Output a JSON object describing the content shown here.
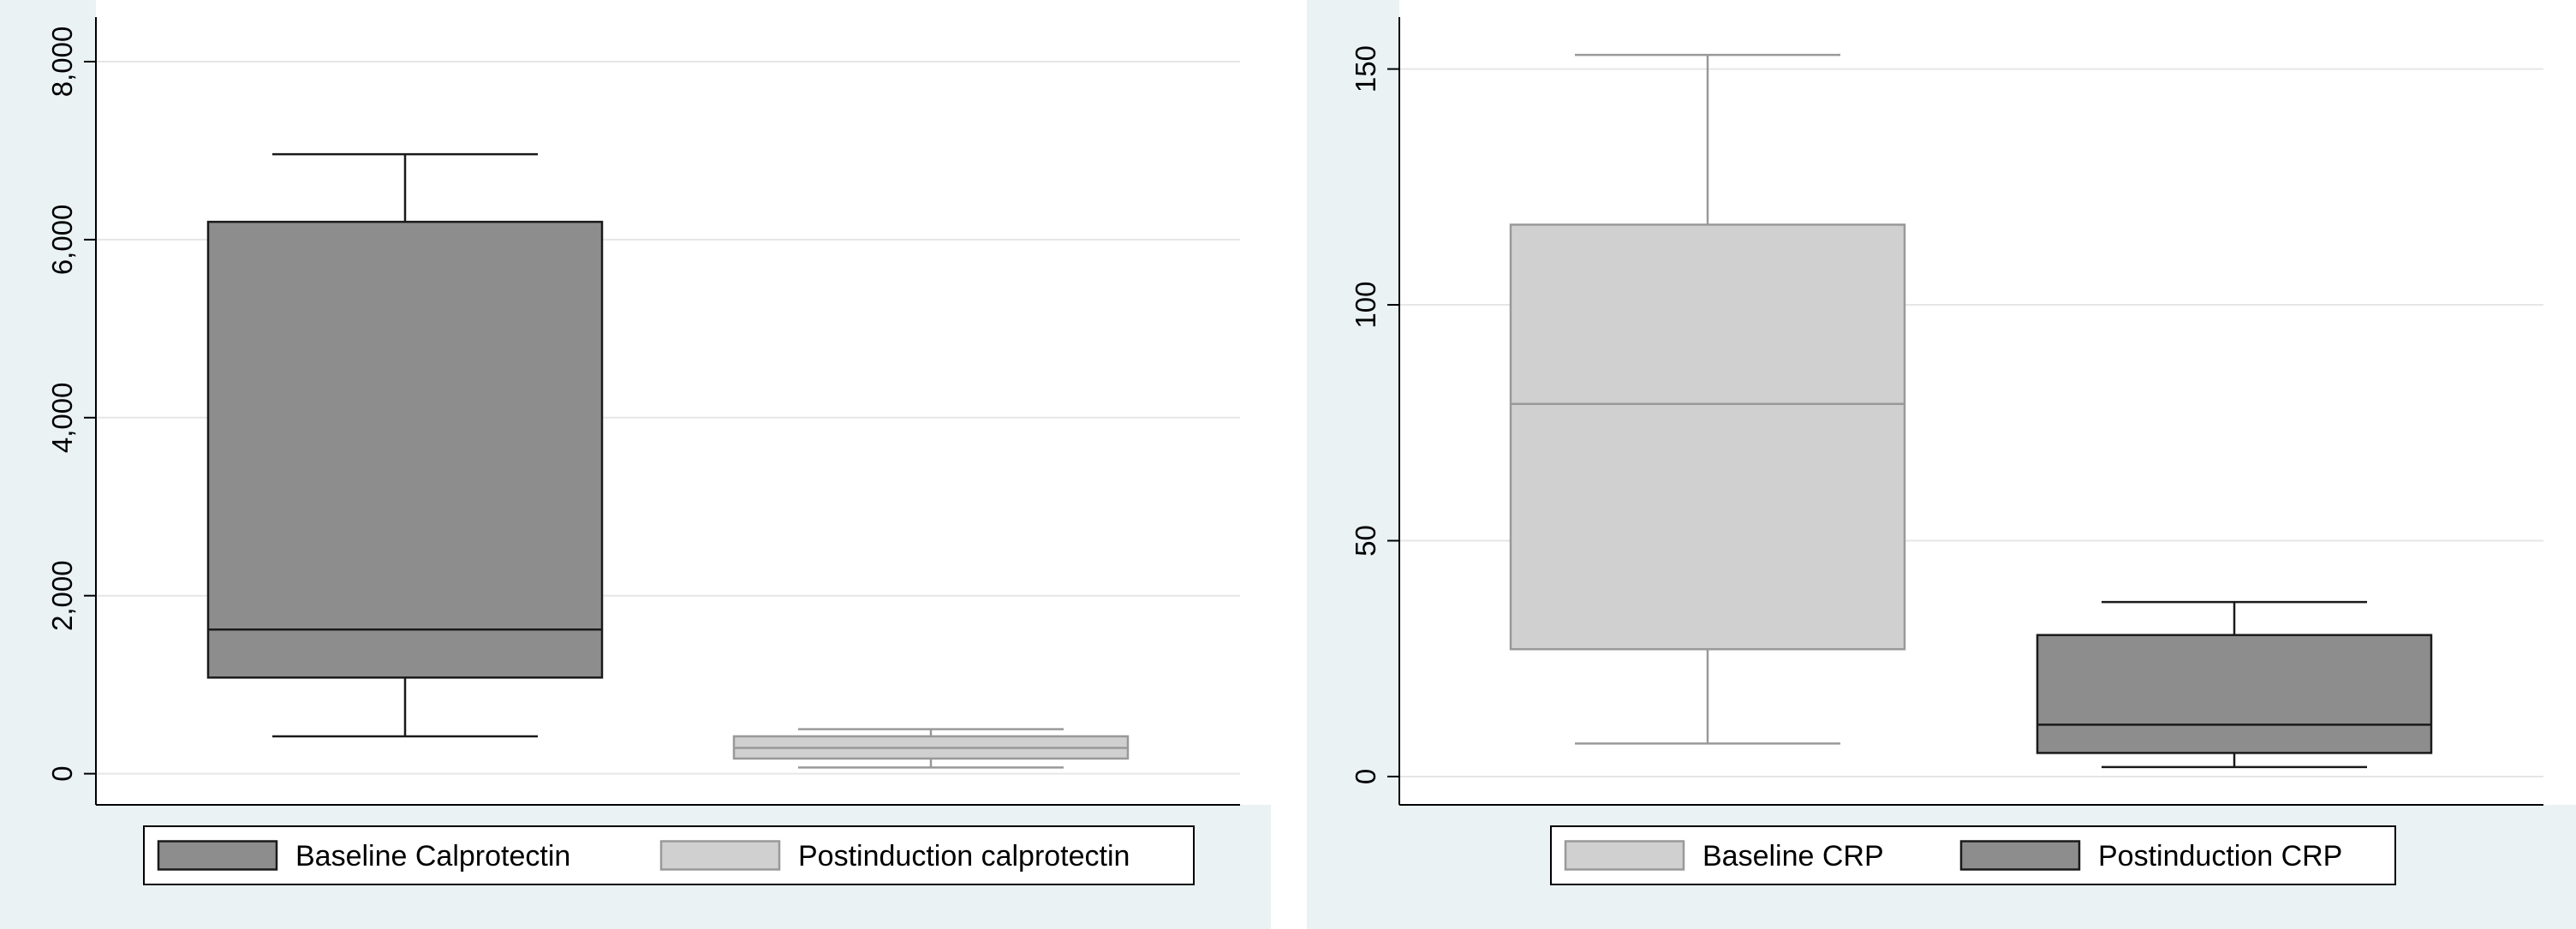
{
  "chart_data": [
    {
      "type": "box",
      "title": "",
      "xlabel": "",
      "ylabel": "",
      "ylim": [
        -350,
        8500
      ],
      "yticks": [
        0,
        2000,
        4000,
        6000,
        8000
      ],
      "ytick_labels": [
        "0",
        "2,000",
        "4,000",
        "6,000",
        "8,000"
      ],
      "grid": true,
      "legend_position": "bottom",
      "series": [
        {
          "name": "Baseline Calprotectin",
          "color": "#8d8d8d",
          "stroke": "#1a1a1a",
          "whisker_low": 420,
          "q1": 1080,
          "median": 1620,
          "q3": 6200,
          "whisker_high": 6960
        },
        {
          "name": "Postinduction calprotectin",
          "color": "#d0d0d0",
          "stroke": "#999999",
          "whisker_low": 70,
          "q1": 170,
          "median": 290,
          "q3": 420,
          "whisker_high": 500
        }
      ]
    },
    {
      "type": "box",
      "title": "",
      "xlabel": "",
      "ylabel": "",
      "ylim": [
        -6,
        161
      ],
      "yticks": [
        0,
        50,
        100,
        150
      ],
      "ytick_labels": [
        "0",
        "50",
        "100",
        "150"
      ],
      "grid": true,
      "legend_position": "bottom",
      "series": [
        {
          "name": "Baseline CRP",
          "color": "#d0d0d0",
          "stroke": "#999999",
          "whisker_low": 7,
          "q1": 27,
          "median": 79,
          "q3": 117,
          "whisker_high": 153
        },
        {
          "name": "Postinduction CRP",
          "color": "#8d8d8d",
          "stroke": "#1a1a1a",
          "whisker_low": 2,
          "q1": 5,
          "median": 11,
          "q3": 30,
          "whisker_high": 37
        }
      ]
    }
  ]
}
